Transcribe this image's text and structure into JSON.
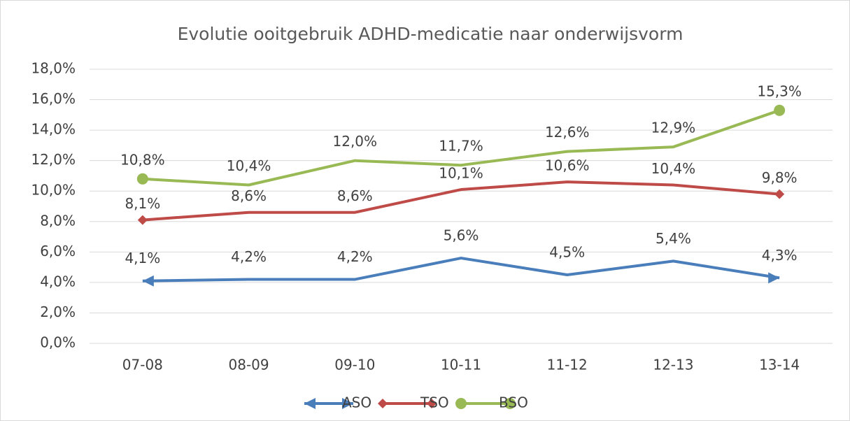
{
  "chart_data": {
    "type": "line",
    "title": "Evolutie ooitgebruik ADHD-medicatie naar onderwijsvorm",
    "categories": [
      "07-08",
      "08-09",
      "09-10",
      "10-11",
      "11-12",
      "12-13",
      "13-14"
    ],
    "series": [
      {
        "name": "ASO",
        "color": "#4a7ebb",
        "marker": "arrow",
        "values": [
          4.1,
          4.2,
          4.2,
          5.6,
          4.5,
          5.4,
          4.3
        ],
        "value_labels": [
          "4,1%",
          "4,2%",
          "4,2%",
          "5,6%",
          "4,5%",
          "5,4%",
          "4,3%"
        ]
      },
      {
        "name": "TSO",
        "color": "#be4b48",
        "marker": "diamond",
        "values": [
          8.1,
          8.6,
          8.6,
          10.1,
          10.6,
          10.4,
          9.8
        ],
        "value_labels": [
          "8,1%",
          "8,6%",
          "8,6%",
          "10,1%",
          "10,6%",
          "10,4%",
          "9,8%"
        ]
      },
      {
        "name": "BSO",
        "color": "#98b954",
        "marker": "circle",
        "values": [
          10.8,
          10.4,
          12.0,
          11.7,
          12.6,
          12.9,
          15.3
        ],
        "value_labels": [
          "10,8%",
          "10,4%",
          "12,0%",
          "11,7%",
          "12,6%",
          "12,9%",
          "15,3%"
        ]
      }
    ],
    "ylim": [
      0,
      18
    ],
    "yticks": [
      {
        "value": 0,
        "label": "0,0%"
      },
      {
        "value": 2,
        "label": "2,0%"
      },
      {
        "value": 4,
        "label": "4,0%"
      },
      {
        "value": 6,
        "label": "6,0%"
      },
      {
        "value": 8,
        "label": "8,0%"
      },
      {
        "value": 10,
        "label": "10,0%"
      },
      {
        "value": 12,
        "label": "12,0%"
      },
      {
        "value": 14,
        "label": "14,0%"
      },
      {
        "value": 16,
        "label": "16,0%"
      },
      {
        "value": 18,
        "label": "18,0%"
      }
    ],
    "grid": true,
    "legend": "bottom"
  }
}
